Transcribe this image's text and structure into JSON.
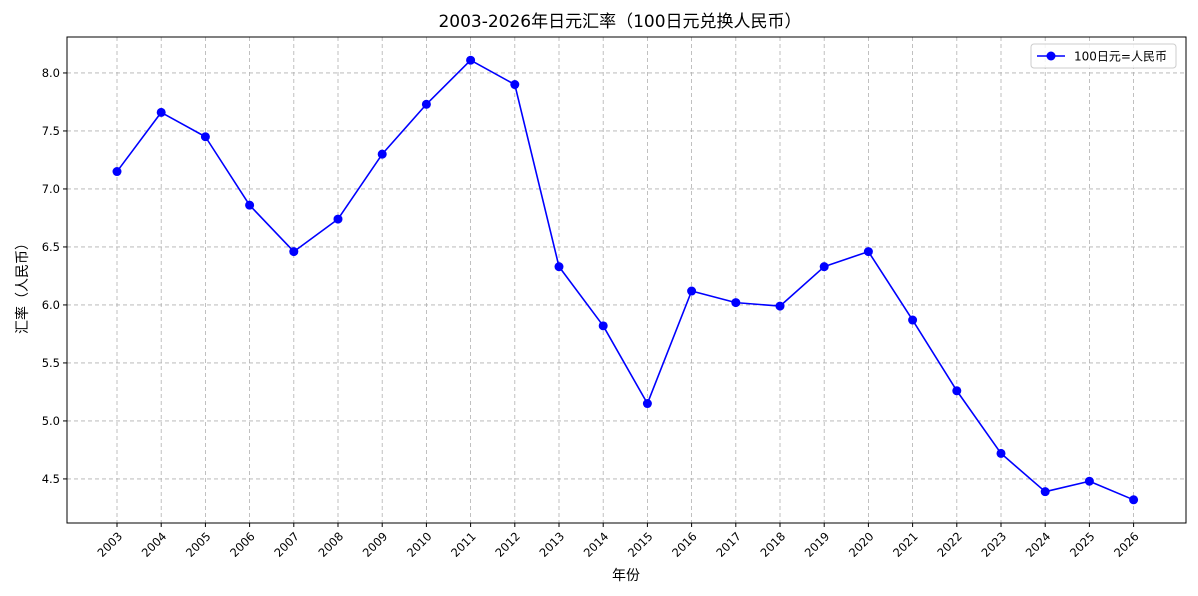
{
  "chart_data": {
    "type": "line",
    "title": "2003-2026年日元汇率（100日元兑换人民币）",
    "xlabel": "年份",
    "ylabel": "汇率（人民币）",
    "x": [
      "2003",
      "2004",
      "2005",
      "2006",
      "2007",
      "2008",
      "2009",
      "2010",
      "2011",
      "2012",
      "2013",
      "2014",
      "2015",
      "2016",
      "2017",
      "2018",
      "2019",
      "2020",
      "2021",
      "2022",
      "2023",
      "2024",
      "2025",
      "2026"
    ],
    "series": [
      {
        "name": "100日元=人民币",
        "color": "#0000ff",
        "marker": "circle",
        "values": [
          7.15,
          7.66,
          7.45,
          6.86,
          6.46,
          6.74,
          7.3,
          7.73,
          8.11,
          7.9,
          6.33,
          5.82,
          5.15,
          6.12,
          6.02,
          5.99,
          6.33,
          6.46,
          5.87,
          5.26,
          4.72,
          4.39,
          4.48,
          4.32
        ]
      }
    ],
    "ylim": [
      4.12,
      8.31
    ],
    "yticks": [
      4.5,
      5.0,
      5.5,
      6.0,
      6.5,
      7.0,
      7.5,
      8.0
    ],
    "ytick_labels": [
      "4.5",
      "5.0",
      "5.5",
      "6.0",
      "6.5",
      "7.0",
      "7.5",
      "8.0"
    ],
    "grid": true,
    "grid_style": "dashed",
    "legend_position": "upper right",
    "xtick_rotation": 45
  }
}
